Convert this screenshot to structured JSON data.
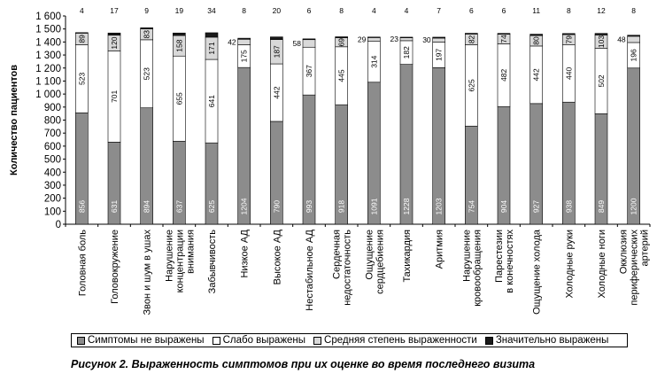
{
  "chart_data": {
    "type": "bar",
    "stacked": true,
    "ylabel": "Количество пациентов",
    "ylim": [
      0,
      1600
    ],
    "yticks": [
      "0",
      "100",
      "200",
      "300",
      "400",
      "500",
      "600",
      "700",
      "800",
      "900",
      "1 000",
      "1 100",
      "1 200",
      "1 300",
      "1 400",
      "1 500",
      "1 600"
    ],
    "categories": [
      "Головная боль",
      "Головокружение",
      "Звон и шум в ушах",
      "Нарушение концентрации внимания",
      "Забывчивость",
      "Низкое АД",
      "Высокое АД",
      "Нестабильное АД",
      "Сердечная недостаточность",
      "Ощущение сердцебиения",
      "Тахикардия",
      "Аритмия",
      "Нарушение кровообращения",
      "Парестезии в конечностях",
      "Ощущение холода",
      "Холодные руки",
      "Холодные ноги",
      "Окклюзия периферических артерий"
    ],
    "category_lines": [
      [
        "Головная боль"
      ],
      [
        "Головокружение"
      ],
      [
        "Звон и шум в ушах"
      ],
      [
        "Нарушение",
        "концентрации",
        "внимания"
      ],
      [
        "Забывчивость"
      ],
      [
        "Низкое АД"
      ],
      [
        "Высокое АД"
      ],
      [
        "Нестабильное АД"
      ],
      [
        "Сердечная",
        "недостаточность"
      ],
      [
        "Ощущение",
        "сердцебиения"
      ],
      [
        "Тахикардия"
      ],
      [
        "Аритмия"
      ],
      [
        "Нарушение",
        "кровообращения"
      ],
      [
        "Парестезии",
        "в конечностях"
      ],
      [
        "Ощущение холода"
      ],
      [
        "Холодные руки"
      ],
      [
        "Холодные ноги"
      ],
      [
        "Окклюзия",
        "периферических",
        "артерий"
      ]
    ],
    "series": [
      {
        "name": "Симптомы не выражены",
        "color": "#8c8c8c",
        "values": [
          856,
          631,
          894,
          637,
          625,
          1204,
          790,
          993,
          918,
          1091,
          1228,
          1203,
          754,
          904,
          927,
          938,
          849,
          1200
        ]
      },
      {
        "name": "Слабо выражены",
        "color": "#ffffff",
        "values": [
          523,
          701,
          523,
          655,
          641,
          175,
          442,
          367,
          445,
          314,
          182,
          197,
          625,
          482,
          442,
          440,
          502,
          196
        ]
      },
      {
        "name": "Средняя степень выраженности",
        "color": "#d9d9d9",
        "values": [
          89,
          120,
          83,
          158,
          171,
          42,
          187,
          58,
          69,
          29,
          23,
          30,
          82,
          74,
          80,
          79,
          103,
          48
        ]
      },
      {
        "name": "Значительно выражены",
        "color": "#1a1a1a",
        "values": [
          4,
          17,
          9,
          19,
          34,
          8,
          20,
          6,
          8,
          4,
          4,
          7,
          6,
          6,
          11,
          8,
          12,
          8
        ]
      }
    ],
    "grid": false,
    "legend_position": "bottom"
  },
  "caption": "Рисунок 2. Выраженность симптомов при их оценке во время последнего визита"
}
